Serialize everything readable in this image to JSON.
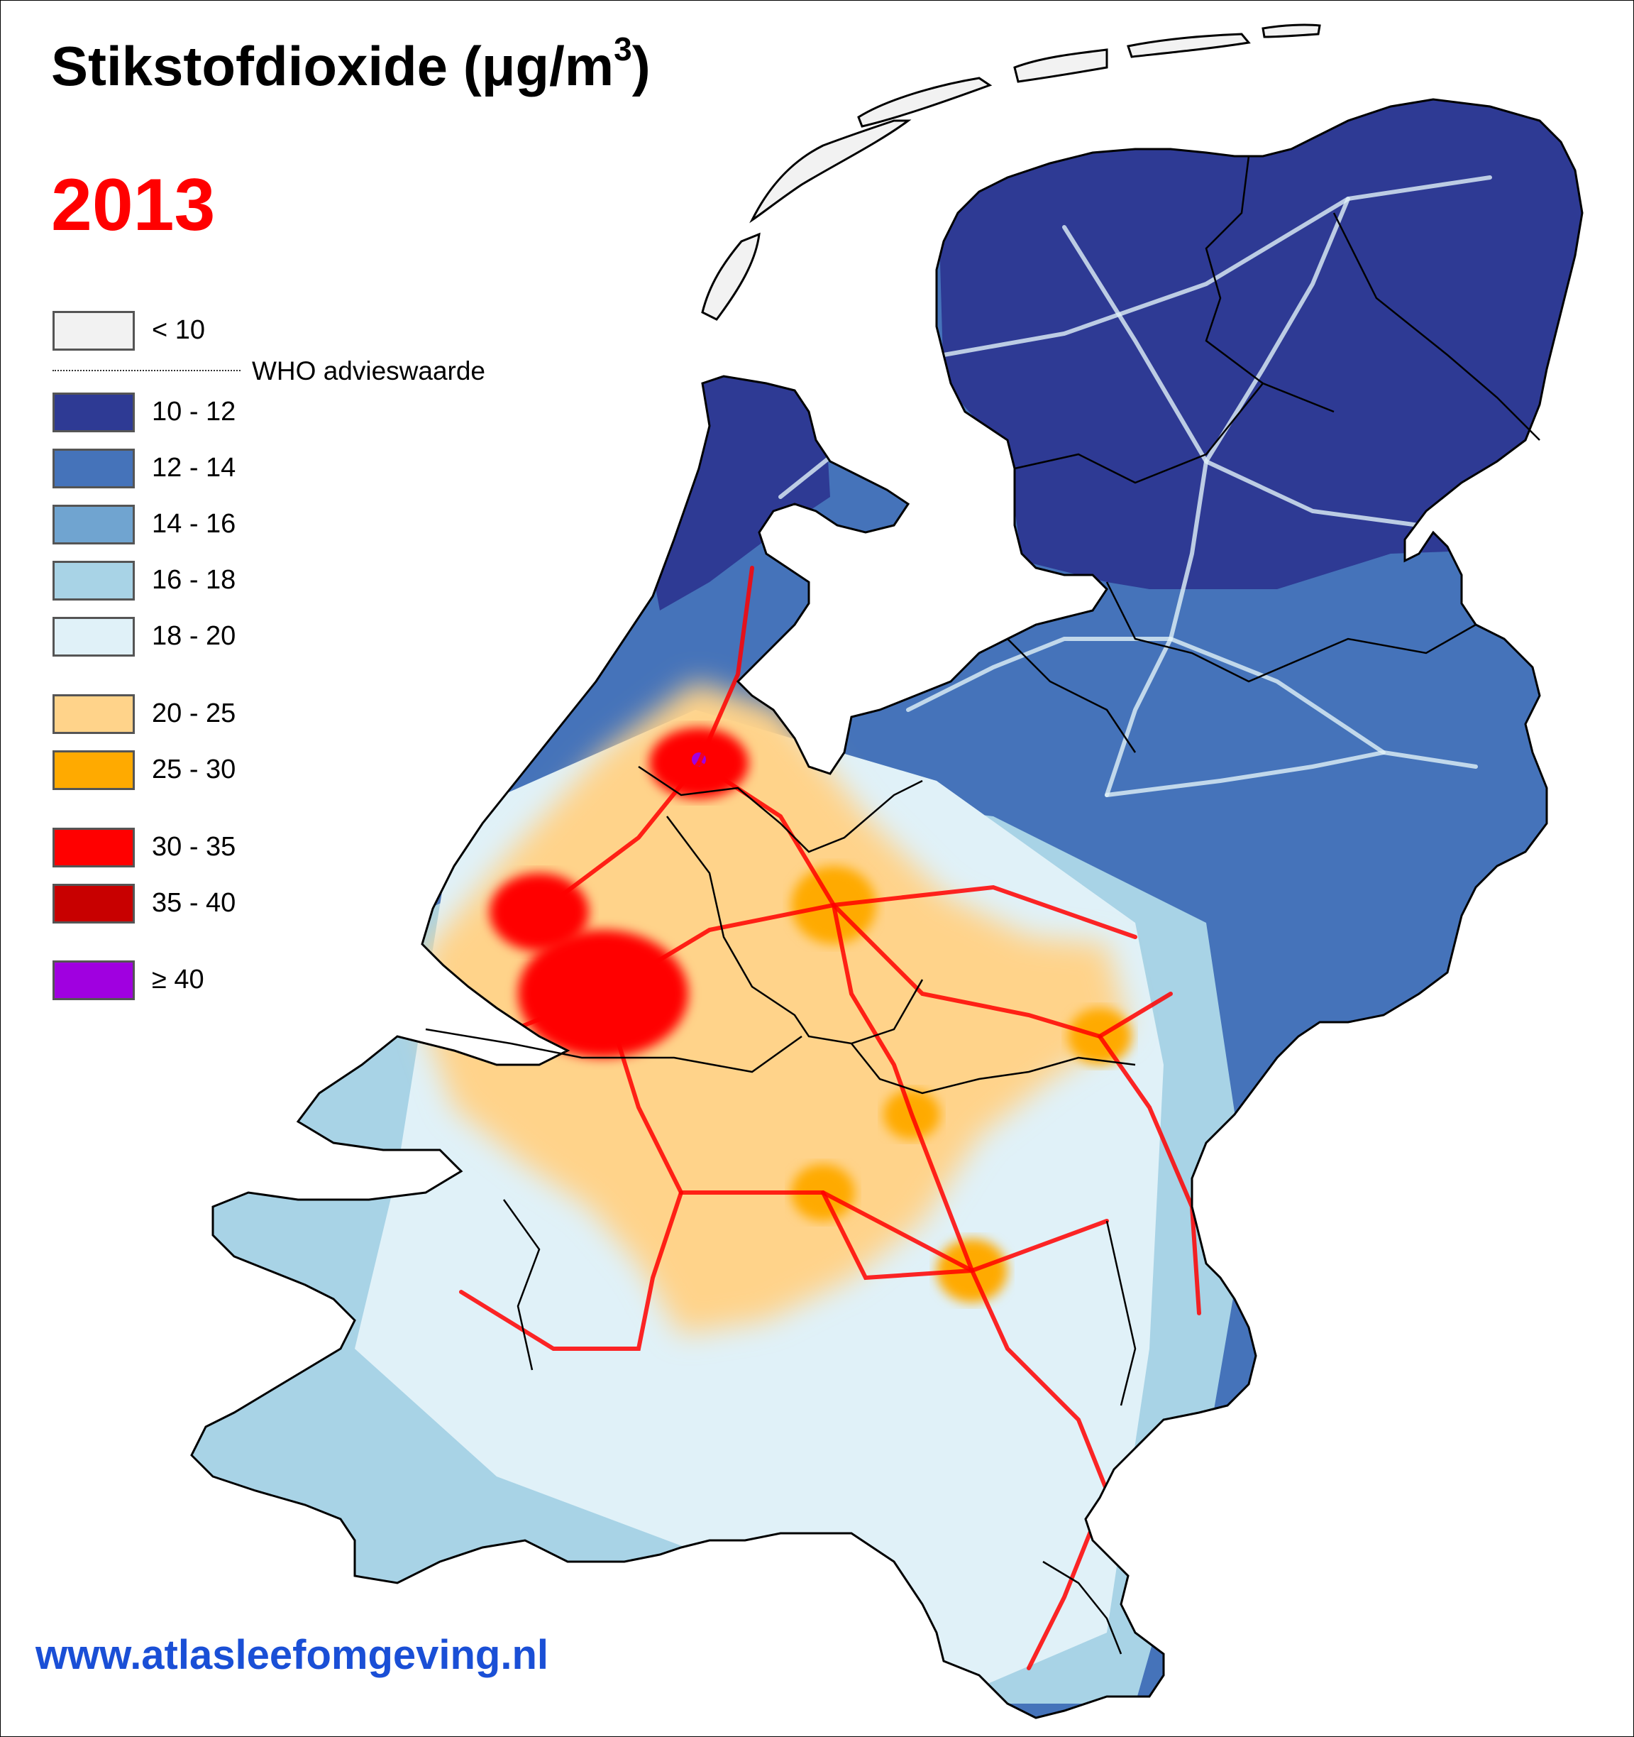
{
  "title": {
    "main": "Stikstofdioxide (μg/m",
    "superscript": "3",
    "close": ")"
  },
  "year": "2013",
  "legend": {
    "below": {
      "label": "< 10",
      "color": "#f2f2f2"
    },
    "threshold_label": "WHO advieswaarde",
    "classes": [
      {
        "label": "10 - 12",
        "color": "#2e3a94"
      },
      {
        "label": "12 - 14",
        "color": "#4573ba"
      },
      {
        "label": "14 - 16",
        "color": "#70a4d0"
      },
      {
        "label": "16 - 18",
        "color": "#a8d3e6"
      },
      {
        "label": "18 - 20",
        "color": "#e0f1f8"
      },
      {
        "label": "20 - 25",
        "color": "#ffd38a"
      },
      {
        "label": "25 - 30",
        "color": "#ffaa00"
      },
      {
        "label": "30 - 35",
        "color": "#ff0000"
      },
      {
        "label": "35 - 40",
        "color": "#c80000"
      },
      {
        "label": "≥ 40",
        "color": "#a000e0"
      }
    ]
  },
  "website": "www.atlasleefomgeving.nl",
  "map": {
    "country": "Nederland",
    "colors": {
      "outline": "#000000",
      "islands": "#f2f2f2",
      "north": "#2e3a94",
      "east": "#4573ba",
      "mid_light": "#a8d3e6",
      "very_light": "#e0f1f8",
      "randstad": "#ffd38a",
      "urban": "#ffaa00",
      "hotspot": "#ff0000",
      "peak": "#a000e0"
    }
  }
}
